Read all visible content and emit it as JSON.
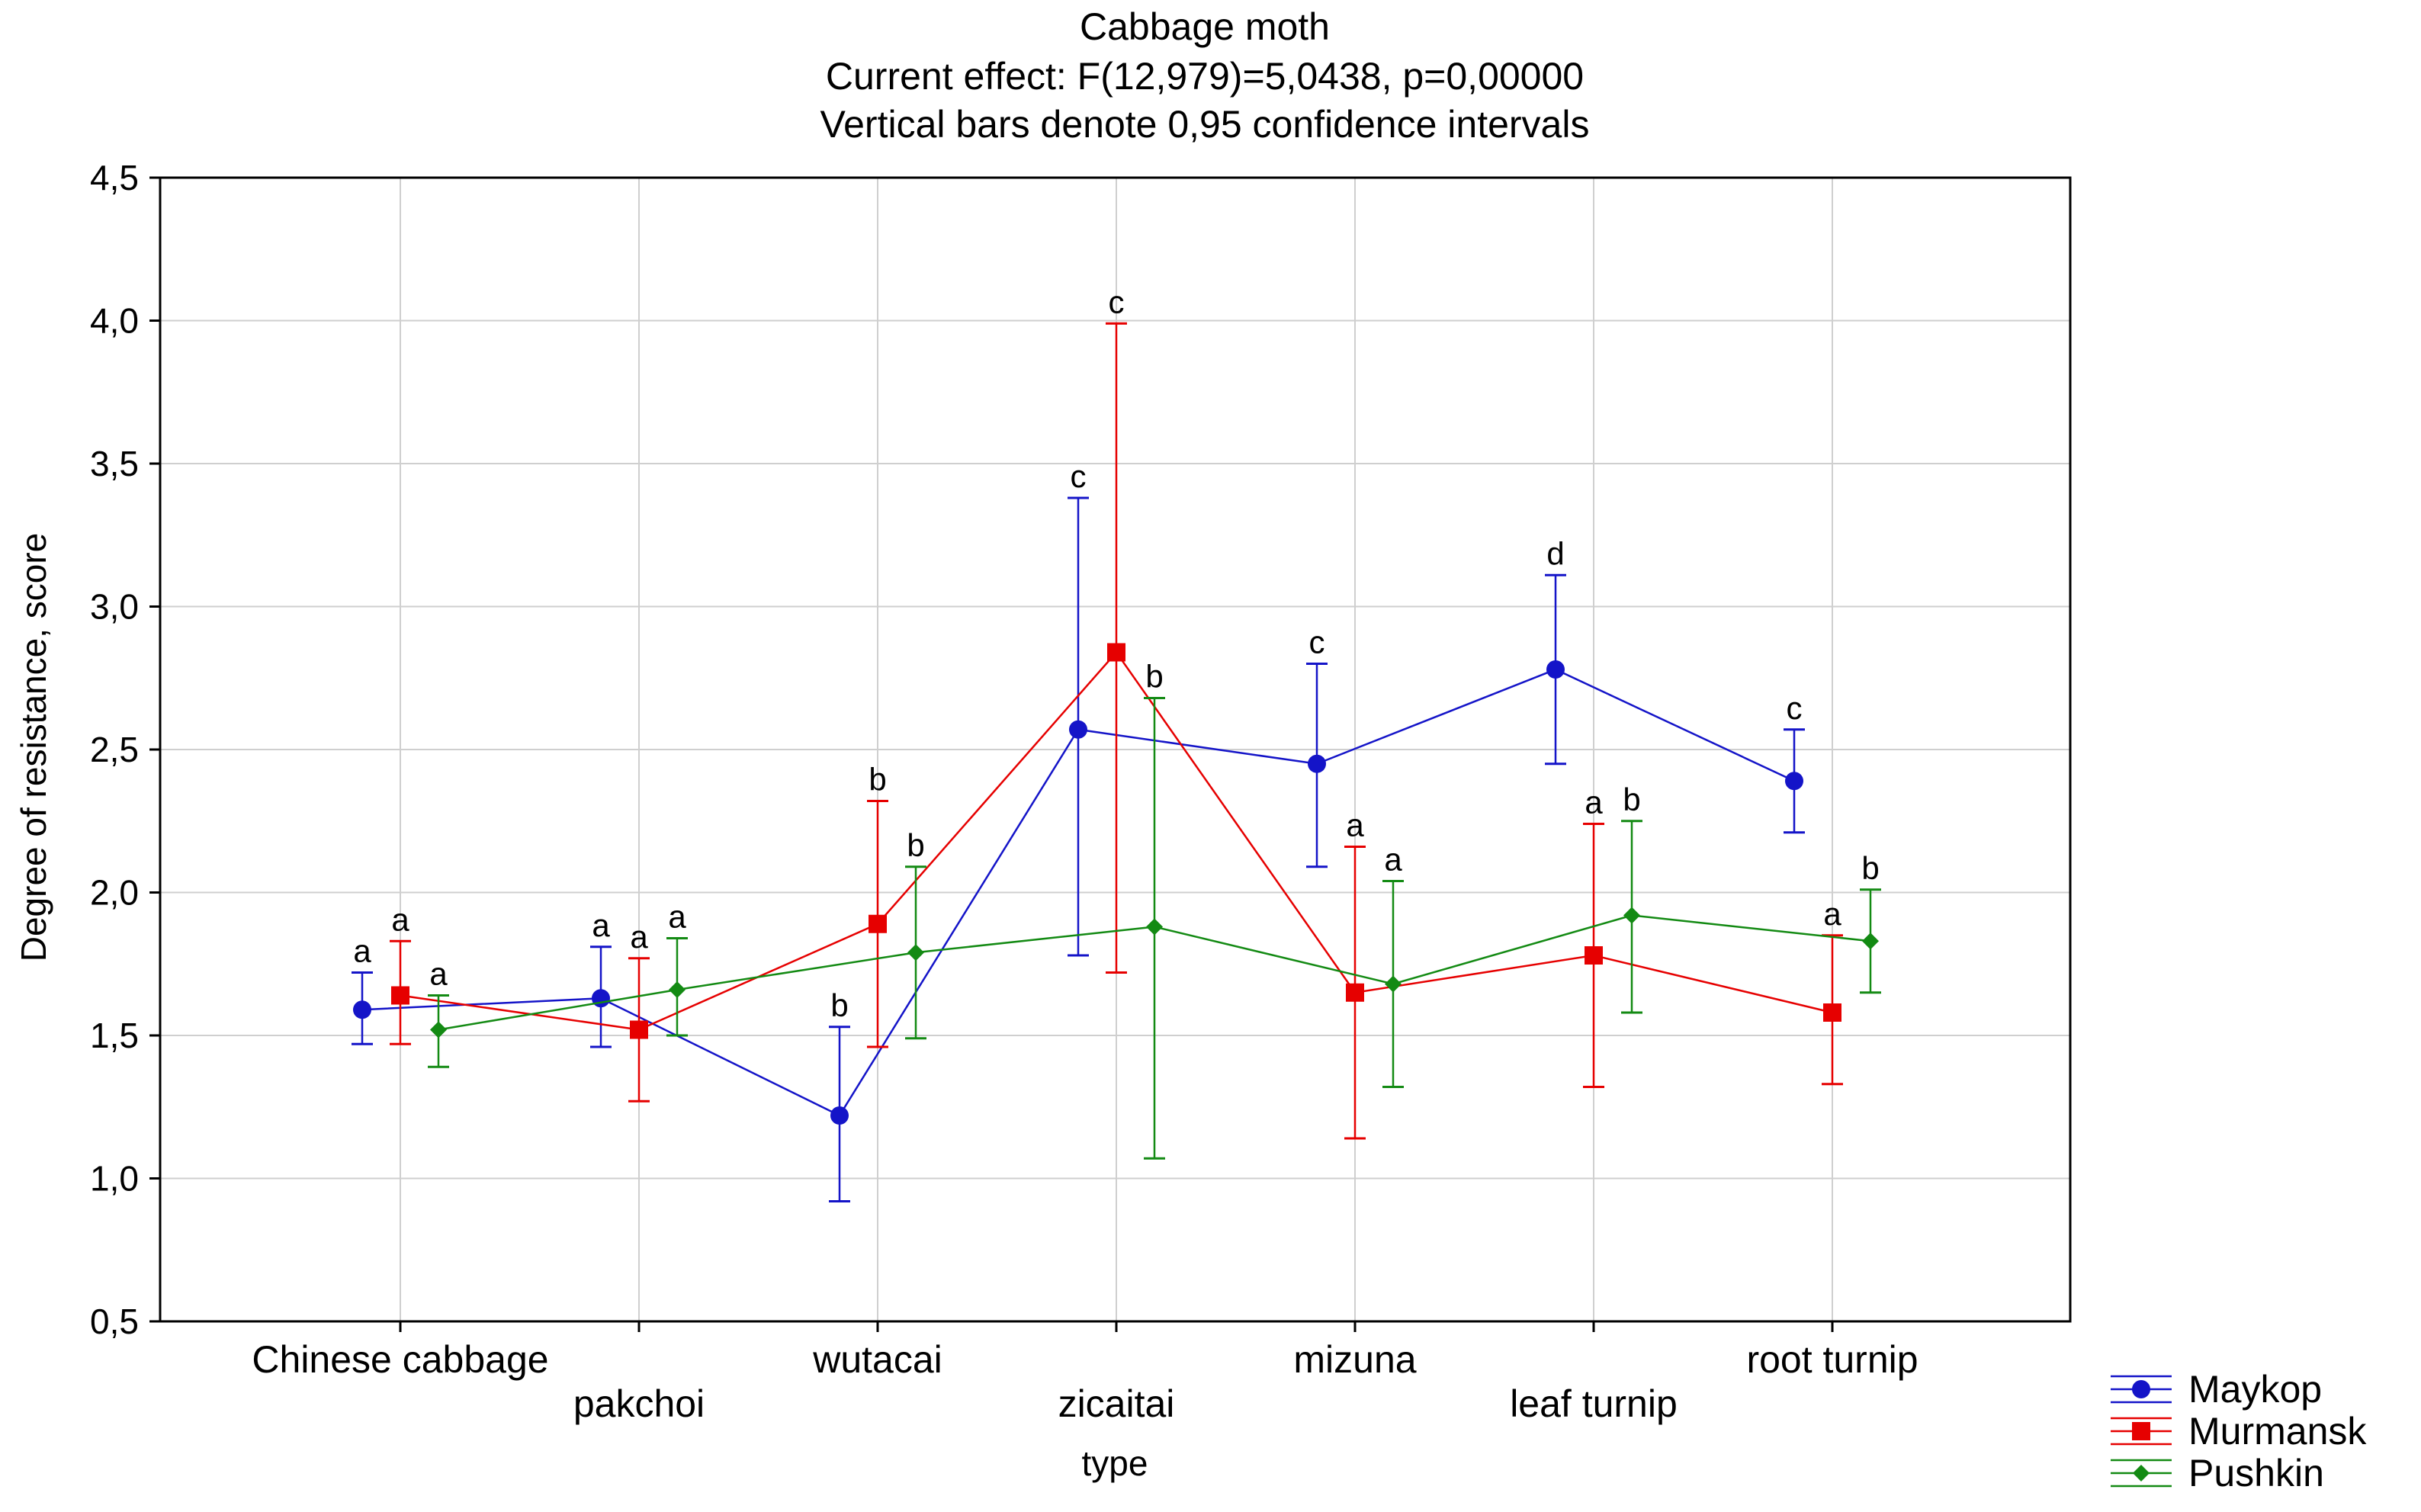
{
  "chart_data": {
    "type": "line",
    "title_lines": [
      "Cabbage moth",
      "Current effect: F(12,979)=5,0438, p=0,00000",
      "Vertical bars denote 0,95 confidence intervals"
    ],
    "xlabel": "type",
    "ylabel": "Degree of resistance, score",
    "ylim": [
      0.5,
      4.5
    ],
    "yticks": [
      "0,5",
      "1,0",
      "1,5",
      "2,0",
      "2,5",
      "3,0",
      "3,5",
      "4,0",
      "4,5"
    ],
    "categories": [
      "Chinese cabbage",
      "pakchoi",
      "wutacai",
      "zicaitai",
      "mizuna",
      "leaf turnip",
      "root turnip"
    ],
    "grid": true,
    "legend_position": "bottom-right",
    "series": [
      {
        "name": "Maykop",
        "color": "#1414c8",
        "marker": "circle",
        "values": [
          1.59,
          1.63,
          1.22,
          2.57,
          2.45,
          2.78,
          2.39
        ],
        "ci_low": [
          1.47,
          1.46,
          0.92,
          1.78,
          2.09,
          2.45,
          2.21
        ],
        "ci_high": [
          1.72,
          1.81,
          1.53,
          3.38,
          2.8,
          3.11,
          2.57
        ],
        "letters": [
          "a",
          "a",
          "b",
          "c",
          "c",
          "d",
          "c"
        ]
      },
      {
        "name": "Murmansk",
        "color": "#e60000",
        "marker": "square",
        "values": [
          1.64,
          1.52,
          1.89,
          2.84,
          1.65,
          1.78,
          1.58
        ],
        "ci_low": [
          1.47,
          1.27,
          1.46,
          1.72,
          1.14,
          1.32,
          1.33
        ],
        "ci_high": [
          1.83,
          1.77,
          2.32,
          3.99,
          2.16,
          2.24,
          1.85
        ],
        "letters": [
          "a",
          "a",
          "b",
          "c",
          "a",
          "a",
          "a"
        ]
      },
      {
        "name": "Pushkin",
        "color": "#138a13",
        "marker": "diamond",
        "values": [
          1.52,
          1.66,
          1.79,
          1.88,
          1.68,
          1.92,
          1.83
        ],
        "ci_low": [
          1.39,
          1.5,
          1.49,
          1.07,
          1.32,
          1.58,
          1.65
        ],
        "ci_high": [
          1.64,
          1.84,
          2.09,
          2.68,
          2.04,
          2.25,
          2.01
        ],
        "letters": [
          "a",
          "a",
          "b",
          "b",
          "a",
          "b",
          "b"
        ]
      }
    ]
  }
}
